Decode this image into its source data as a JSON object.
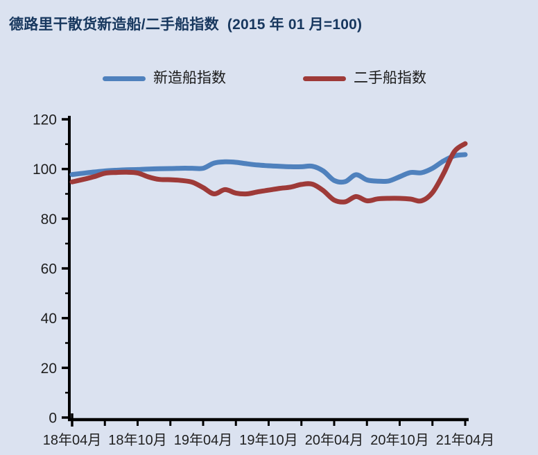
{
  "title": "德路里干散货新造船/二手船指数  (2015 年 01 月=100)",
  "title_color": "#17375e",
  "background_color": "#dbe2f0",
  "axis_color": "#000000",
  "tick_label_color": "#1f1f1f",
  "legend": [
    {
      "key": "newbuild-index",
      "label": "新造船指数",
      "color": "#4f81bd"
    },
    {
      "key": "secondhand-index",
      "label": "二手船指数",
      "color": "#9e3a38"
    }
  ],
  "chart_data": {
    "type": "line",
    "title": "德路里干散货新造船/二手船指数 (2015 年 01 月=100)",
    "xlabel": "",
    "ylabel": "",
    "ylim": [
      0,
      120
    ],
    "y_ticks": [
      0,
      20,
      40,
      60,
      80,
      100,
      120
    ],
    "y_minor_tick_step": 10,
    "x_minor_tick_every": 3,
    "x_label_every": 6,
    "grid": false,
    "legend_position": "top",
    "x_tick_labels": [
      "18年04月",
      "18年10月",
      "19年04月",
      "19年10月",
      "20年04月",
      "20年10月",
      "21年04月"
    ],
    "categories": [
      "18年04月",
      "18年05月",
      "18年06月",
      "18年07月",
      "18年08月",
      "18年09月",
      "18年10月",
      "18年11月",
      "18年12月",
      "19年01月",
      "19年02月",
      "19年03月",
      "19年04月",
      "19年05月",
      "19年06月",
      "19年07月",
      "19年08月",
      "19年09月",
      "19年10月",
      "19年11月",
      "19年12月",
      "20年01月",
      "20年02月",
      "20年03月",
      "20年04月",
      "20年05月",
      "20年06月",
      "20年07月",
      "20年08月",
      "20年09月",
      "20年10月",
      "20年11月",
      "20年12月",
      "21年01月",
      "21年02月",
      "21年03月",
      "21年04月"
    ],
    "series": [
      {
        "key": "newbuild-index",
        "name": "新造船指数",
        "color": "#4f81bd",
        "values": [
          97.8,
          98.3,
          98.8,
          99.2,
          99.5,
          99.7,
          99.8,
          100.0,
          100.1,
          100.2,
          100.3,
          100.3,
          100.3,
          102.4,
          102.9,
          102.7,
          102.1,
          101.6,
          101.3,
          101.1,
          100.9,
          100.9,
          101.1,
          99.2,
          95.4,
          94.9,
          97.7,
          95.6,
          95.1,
          95.2,
          96.9,
          98.6,
          98.5,
          100.3,
          103.2,
          105.3,
          105.8
        ]
      },
      {
        "key": "secondhand-index",
        "name": "二手船指数",
        "color": "#9e3a38",
        "values": [
          94.8,
          95.8,
          96.9,
          98.3,
          98.6,
          98.7,
          98.4,
          96.8,
          95.8,
          95.7,
          95.4,
          94.7,
          92.5,
          90.0,
          91.7,
          90.3,
          90.0,
          90.8,
          91.5,
          92.2,
          92.7,
          93.8,
          93.9,
          91.3,
          87.5,
          86.8,
          88.9,
          87.2,
          88.0,
          88.2,
          88.2,
          87.9,
          87.2,
          90.5,
          98.0,
          107.0,
          110.2
        ]
      }
    ]
  }
}
